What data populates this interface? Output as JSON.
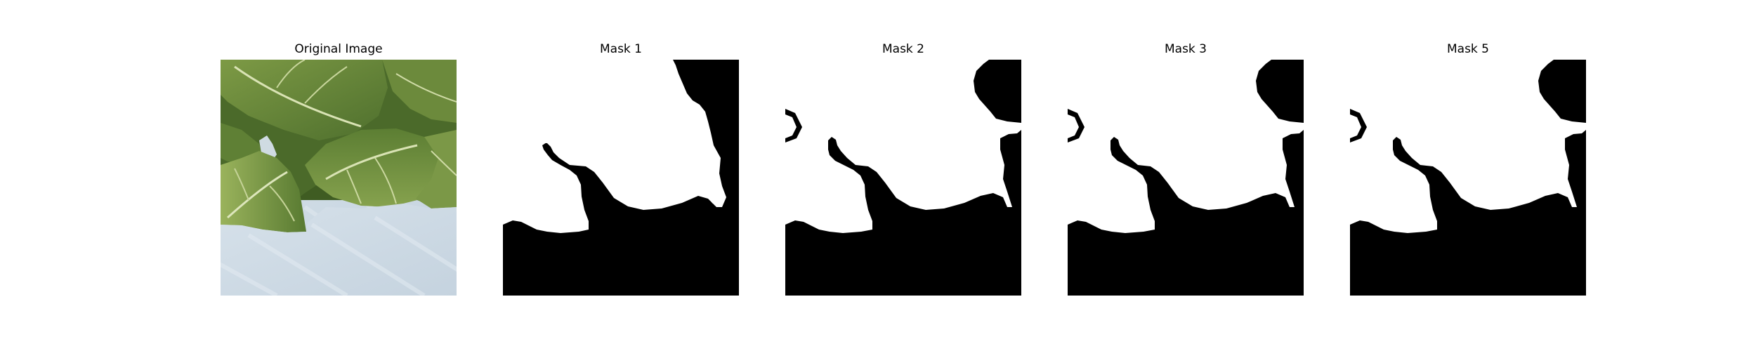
{
  "figure": {
    "panels": [
      {
        "id": "original",
        "title": "Original Image"
      },
      {
        "id": "mask-1",
        "title": "Mask 1"
      },
      {
        "id": "mask-2",
        "title": "Mask 2"
      },
      {
        "id": "mask-3",
        "title": "Mask 3"
      },
      {
        "id": "mask-5",
        "title": "Mask 5"
      }
    ]
  },
  "colors": {
    "mask_foreground": "#ffffff",
    "mask_background": "#000000",
    "sky_background": "#cfdbe5",
    "leaf_dark": "#4d6e2c",
    "leaf_mid": "#6e8f3e",
    "leaf_light": "#9bb35e",
    "vein": "#d9e3b4"
  }
}
